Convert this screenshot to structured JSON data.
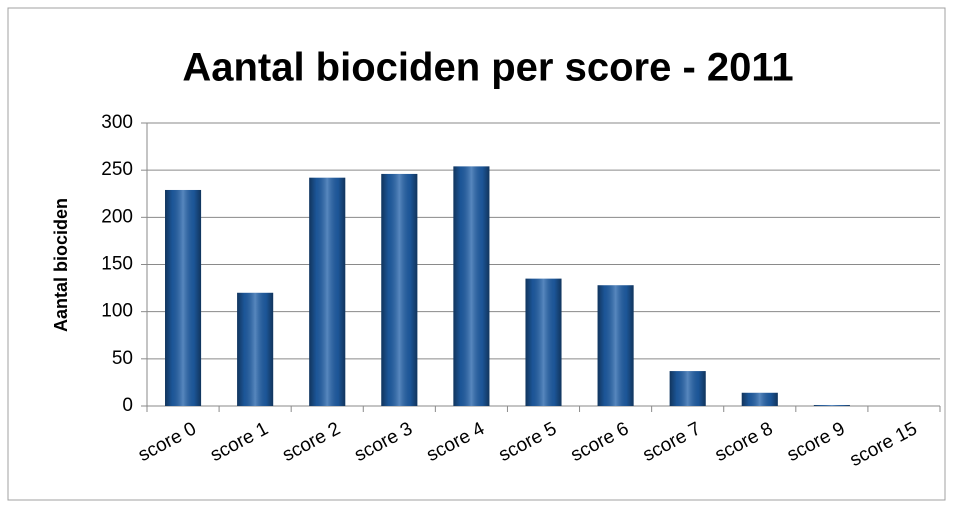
{
  "chart_data": {
    "type": "bar",
    "title": "Aantal biociden per score - 2011",
    "y_label": "Aantal biociden",
    "categories": [
      "score 0",
      "score 1",
      "score 2",
      "score 3",
      "score 4",
      "score 5",
      "score 6",
      "score 7",
      "score 8",
      "score 9",
      "score 15"
    ],
    "values": [
      229,
      120,
      242,
      246,
      254,
      135,
      128,
      37,
      14,
      1,
      0
    ],
    "color": "#1f5fa8",
    "ylim": [
      0,
      300
    ],
    "yticks": [
      0,
      50,
      100,
      150,
      200,
      250,
      300
    ],
    "grid": true
  }
}
